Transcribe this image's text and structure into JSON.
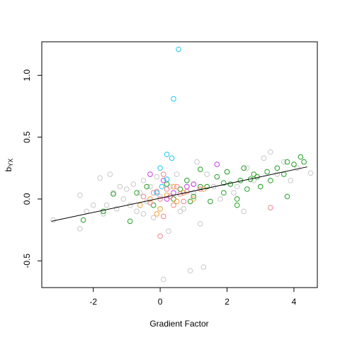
{
  "chart_data": {
    "type": "scatter",
    "xlabel": "Gradient Factor",
    "ylabel": {
      "main": "b",
      "sub": "YX"
    },
    "xlim": [
      -3.54,
      4.7
    ],
    "ylim": [
      -0.716,
      1.271
    ],
    "xticks": [
      -2,
      0,
      2,
      4
    ],
    "yticks": [
      -0.5,
      {
        "value": 0,
        "label": "0.0"
      },
      0.5,
      {
        "value": 1,
        "label": "1.0"
      }
    ],
    "fit_line": {
      "color": "#000000",
      "x": [
        -3.25,
        4.4
      ],
      "y": [
        -0.18,
        0.26
      ]
    },
    "series": [
      {
        "color": "#c8c8c8",
        "x": [
          -3.2,
          -2.4,
          -2.4,
          -2.2,
          -2.0,
          -1.8,
          -1.7,
          -1.5,
          -1.4,
          -1.3,
          -1.2,
          -1.1,
          -1.0,
          -0.9,
          -0.8,
          -0.7,
          -0.6,
          -0.5,
          -0.4,
          -0.3,
          -0.2,
          -0.1,
          0.0,
          0.1,
          0.25,
          0.3,
          0.5,
          0.6,
          0.8,
          0.9,
          1.0,
          1.2,
          1.3,
          1.4,
          1.6,
          1.8,
          2.0,
          2.2,
          2.5,
          2.6,
          2.8,
          3.0,
          3.1,
          3.3,
          3.5,
          3.7,
          3.9,
          4.1,
          4.5,
          -1.6,
          -0.5,
          0.7,
          1.1,
          2.3
        ],
        "y": [
          -0.17,
          -0.24,
          0.03,
          -0.1,
          -0.05,
          0.17,
          -0.12,
          0.2,
          0.05,
          -0.08,
          0.1,
          0.0,
          0.08,
          -0.05,
          0.12,
          -0.1,
          0.05,
          0.15,
          -0.02,
          0.1,
          -0.15,
          0.18,
          0.02,
          -0.65,
          -0.26,
          0.1,
          0.2,
          -0.1,
          0.15,
          -0.58,
          0.05,
          -0.2,
          -0.55,
          0.2,
          0.1,
          0.0,
          0.22,
          0.05,
          -0.1,
          0.25,
          0.15,
          0.1,
          0.33,
          0.38,
          0.2,
          0.3,
          0.15,
          0.25,
          0.21,
          -0.05,
          -0.12,
          -0.08,
          0.3,
          0.1
        ]
      },
      {
        "color": "#22a022",
        "x": [
          -2.3,
          -1.7,
          -1.4,
          -0.9,
          -0.7,
          -0.4,
          -0.2,
          0.2,
          0.4,
          0.6,
          0.8,
          1.0,
          1.2,
          1.4,
          1.5,
          1.7,
          1.9,
          2.0,
          2.1,
          2.3,
          2.4,
          2.5,
          2.6,
          2.8,
          2.9,
          3.0,
          3.2,
          3.3,
          3.5,
          3.7,
          3.8,
          4.0,
          4.2,
          4.3,
          3.8,
          2.3,
          1.2,
          0.9,
          2.7,
          1.9
        ],
        "y": [
          -0.17,
          -0.1,
          0.04,
          -0.18,
          0.05,
          0.1,
          -0.05,
          0.12,
          0.0,
          0.08,
          0.15,
          0.02,
          0.24,
          0.1,
          -0.02,
          0.18,
          0.05,
          0.22,
          0.12,
          0.0,
          0.15,
          0.25,
          0.08,
          0.2,
          0.18,
          0.1,
          0.22,
          0.15,
          0.25,
          0.2,
          0.3,
          0.28,
          0.34,
          0.3,
          0.02,
          -0.05,
          0.1,
          -0.02,
          0.16,
          0.13
        ]
      },
      {
        "color": "#f4828c",
        "x": [
          -0.5,
          -0.3,
          -0.2,
          0.0,
          0.0,
          0.1,
          0.2,
          0.3,
          0.4,
          0.5,
          0.6,
          0.8,
          1.0,
          1.2,
          3.3,
          0.1,
          -0.1,
          0.7
        ],
        "y": [
          0.02,
          -0.03,
          0.05,
          0.0,
          -0.3,
          -0.14,
          0.08,
          0.02,
          -0.05,
          0.1,
          0.04,
          0.06,
          0.12,
          0.08,
          -0.07,
          0.2,
          0.06,
          -0.02
        ]
      },
      {
        "color": "#f0a23c",
        "x": [
          -0.6,
          -0.3,
          0.0,
          0.2,
          0.5,
          0.7,
          1.0,
          1.3,
          0.4,
          -0.1
        ],
        "y": [
          -0.05,
          0.0,
          -0.08,
          0.03,
          -0.02,
          0.05,
          0.0,
          0.08,
          0.1,
          -0.12
        ]
      },
      {
        "color": "#c83cf0",
        "x": [
          -0.3,
          0.1,
          0.4,
          0.8,
          1.7,
          0.2,
          1.0
        ],
        "y": [
          0.2,
          0.15,
          0.05,
          0.1,
          0.28,
          0.0,
          0.12
        ]
      },
      {
        "color": "#1ec8f0",
        "x": [
          0.55,
          0.4,
          0.2,
          0.35,
          0.0,
          0.05,
          -0.1,
          0.2
        ],
        "y": [
          1.21,
          0.81,
          0.36,
          0.33,
          0.25,
          0.1,
          0.05,
          0.16
        ]
      }
    ]
  }
}
